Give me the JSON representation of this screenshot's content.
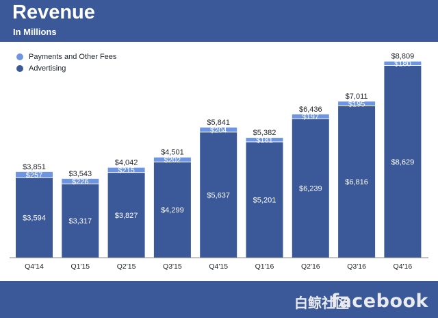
{
  "header": {
    "title": "Revenue",
    "subtitle": "In Millions"
  },
  "footer": {
    "brand": "facebook",
    "watermark": "白鲸社区"
  },
  "colors": {
    "header_bg": "#3b5998",
    "advertising": "#3b5998",
    "payments": "#6d95e1",
    "axis": "#888888"
  },
  "chart_data": {
    "type": "bar",
    "stacked": true,
    "title": "Revenue",
    "subtitle": "In Millions",
    "categories": [
      "Q4'14",
      "Q1'15",
      "Q2'15",
      "Q3'15",
      "Q4'15",
      "Q1'16",
      "Q2'16",
      "Q3'16",
      "Q4'16"
    ],
    "series": [
      {
        "name": "Advertising",
        "values": [
          3594,
          3317,
          3827,
          4299,
          5637,
          5201,
          6239,
          6816,
          8629
        ]
      },
      {
        "name": "Payments and Other Fees",
        "values": [
          257,
          226,
          215,
          202,
          204,
          181,
          197,
          195,
          180
        ]
      }
    ],
    "totals": [
      "$3,851",
      "$3,543",
      "$4,042",
      "$4,501",
      "$5,841",
      "$5,382",
      "$6,436",
      "$7,011",
      "$8,809"
    ],
    "advertising_labels": [
      "$3,594",
      "$3,317",
      "$3,827",
      "$4,299",
      "$5,637",
      "$5,201",
      "$6,239",
      "$6,816",
      "$8,629"
    ],
    "payments_labels": [
      "$257",
      "$226",
      "$215",
      "$202",
      "$204",
      "$181",
      "$197",
      "$195",
      "$180"
    ],
    "ylim": [
      0,
      9500
    ],
    "grid": false,
    "legend_position": "top-left"
  }
}
